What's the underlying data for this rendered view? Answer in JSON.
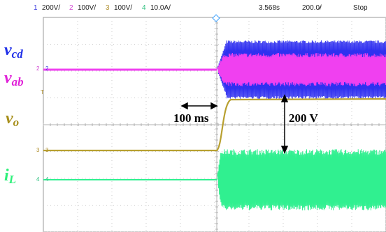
{
  "header": {
    "ch1_num": "1",
    "ch1_scale": "200V/",
    "ch2_num": "2",
    "ch2_scale": "100V/",
    "ch3_num": "3",
    "ch3_scale": "100V/",
    "ch4_num": "4",
    "ch4_scale": "10.0A/",
    "time_pos": "3.568s",
    "time_div": "200.0̷/",
    "run_state": "Stop"
  },
  "labels": {
    "vcd_main": "v",
    "vcd_sub": "cd",
    "vab_main": "v",
    "vab_sub": "ab",
    "vo_main": "v",
    "vo_sub": "o",
    "il_main": "i",
    "il_sub": "L"
  },
  "markers": {
    "ch1": "2",
    "ch2": "2",
    "ch3": "3",
    "ch4": "4",
    "trig": "T"
  },
  "annotations": {
    "time_span": "100 ms",
    "voltage_span": "200 V"
  },
  "colors": {
    "ch1": "#3030f0",
    "ch2": "#f040f0",
    "ch3": "#b8a030",
    "ch4": "#30f090",
    "grid": "#c8c8c8",
    "border": "#999999"
  }
}
